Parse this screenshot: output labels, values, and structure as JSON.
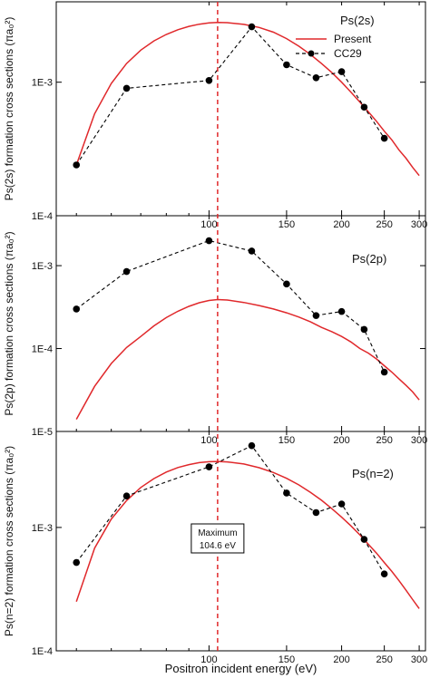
{
  "colors": {
    "present": "#e0282b",
    "cc29": "#000000",
    "maximum_line": "#e0282b",
    "frame": "#000000"
  },
  "chart_data": [
    {
      "type": "line",
      "id": "ps2s",
      "panel_label": "Ps(2s)",
      "ylabel": "Ps(2s) formation cross sections (πa₀²)",
      "ylim": [
        0.0001,
        0.004
      ],
      "yscale": "log",
      "y_ticks": [
        {
          "value": 0.001,
          "label": "1E-3"
        },
        {
          "value": 0.0001,
          "label": "1E-4"
        }
      ],
      "legend": {
        "placement": "top-right",
        "entries": [
          "Present",
          "CC29"
        ]
      },
      "series": [
        {
          "name": "Present",
          "style": "solid",
          "x": [
            50,
            55,
            60,
            65,
            70,
            75,
            80,
            85,
            90,
            95,
            100,
            104.6,
            110,
            120,
            130,
            140,
            150,
            160,
            170,
            180,
            190,
            200,
            210,
            220,
            230,
            240,
            250,
            260,
            270,
            280,
            290,
            300
          ],
          "y": [
            0.00024,
            0.00058,
            0.00098,
            0.00138,
            0.00174,
            0.00204,
            0.00228,
            0.00247,
            0.00262,
            0.00272,
            0.00278,
            0.0028,
            0.00279,
            0.00271,
            0.00257,
            0.00237,
            0.00212,
            0.00186,
            0.00161,
            0.00138,
            0.00118,
            0.001,
            0.00084,
            0.00071,
            0.0006,
            0.00051,
            0.00043,
            0.00037,
            0.00031,
            0.00027,
            0.00023,
            0.0002
          ]
        },
        {
          "name": "CC29",
          "style": "dashed-markers",
          "x": [
            50,
            65,
            100,
            125,
            150,
            175,
            200,
            225,
            250
          ],
          "y": [
            0.00024,
            0.0009,
            0.00103,
            0.0026,
            0.00135,
            0.00108,
            0.0012,
            0.00065,
            0.00038
          ]
        }
      ]
    },
    {
      "type": "line",
      "id": "ps2p",
      "panel_label": "Ps(2p)",
      "ylabel": "Ps(2p) formation cross sections (πa₀²)",
      "ylim": [
        1e-05,
        0.004
      ],
      "yscale": "log",
      "y_ticks": [
        {
          "value": 0.001,
          "label": "1E-3"
        },
        {
          "value": 0.0001,
          "label": "1E-4"
        },
        {
          "value": 1e-05,
          "label": "1E-5"
        }
      ],
      "series": [
        {
          "name": "Present",
          "style": "solid",
          "x": [
            50,
            55,
            60,
            65,
            70,
            75,
            80,
            85,
            90,
            95,
            100,
            104.6,
            110,
            120,
            130,
            140,
            150,
            160,
            170,
            180,
            190,
            200,
            210,
            220,
            230,
            240,
            250,
            260,
            270,
            280,
            290,
            300
          ],
          "y": [
            1.4e-05,
            3.5e-05,
            6.6e-05,
            0.000103,
            0.00014,
            0.000188,
            0.000236,
            0.000282,
            0.000323,
            0.000357,
            0.00038,
            0.00039,
            0.000385,
            0.00036,
            0.00033,
            0.0003,
            0.00027,
            0.00024,
            0.00021,
            0.00018,
            0.00016,
            0.00014,
            0.00012,
            0.0001,
            8.8e-05,
            7.5e-05,
            6.2e-05,
            5.2e-05,
            4.3e-05,
            3.6e-05,
            3e-05,
            2.4e-05
          ]
        },
        {
          "name": "CC29",
          "style": "dashed-markers",
          "x": [
            50,
            65,
            100,
            125,
            150,
            175,
            200,
            225,
            250
          ],
          "y": [
            0.0003,
            0.00085,
            0.002,
            0.0015,
            0.0006,
            0.00025,
            0.00028,
            0.00017,
            5.2e-05
          ]
        }
      ]
    },
    {
      "type": "line",
      "id": "psn2",
      "panel_label": "Ps(n=2)",
      "ylabel": "Ps(n=2) formation cross sections (πa₀²)",
      "xlabel": "Positron incident energy (eV)",
      "ylim": [
        0.0001,
        0.006
      ],
      "yscale": "log",
      "y_ticks": [
        {
          "value": 0.001,
          "label": "1E-3"
        },
        {
          "value": 0.0001,
          "label": "1E-4"
        }
      ],
      "series": [
        {
          "name": "Present",
          "style": "solid",
          "x": [
            50,
            55,
            60,
            65,
            70,
            75,
            80,
            85,
            90,
            95,
            100,
            104.6,
            110,
            120,
            130,
            140,
            150,
            160,
            170,
            180,
            190,
            200,
            210,
            220,
            230,
            240,
            250,
            260,
            270,
            280,
            290,
            300
          ],
          "y": [
            0.00025,
            0.00068,
            0.00117,
            0.00165,
            0.00211,
            0.00249,
            0.00281,
            0.00306,
            0.00323,
            0.00335,
            0.00341,
            0.00343,
            0.0034,
            0.00327,
            0.00305,
            0.00279,
            0.0025,
            0.00221,
            0.00192,
            0.00166,
            0.00142,
            0.00121,
            0.00103,
            0.00087,
            0.00073,
            0.00062,
            0.00052,
            0.00044,
            0.00037,
            0.00031,
            0.00026,
            0.00022
          ]
        },
        {
          "name": "CC29",
          "style": "dashed-markers",
          "x": [
            50,
            65,
            100,
            125,
            150,
            175,
            200,
            225,
            250
          ],
          "y": [
            0.00052,
            0.0018,
            0.0031,
            0.0046,
            0.0019,
            0.00132,
            0.00155,
            0.0008,
            0.00042
          ]
        }
      ]
    }
  ],
  "x_axis": {
    "scale": "log",
    "xlim": [
      45,
      310
    ],
    "ticks": [
      {
        "value": 100,
        "label": "100"
      },
      {
        "value": 150,
        "label": "150"
      },
      {
        "value": 200,
        "label": "200"
      },
      {
        "value": 250,
        "label": "250"
      },
      {
        "value": 300,
        "label": "300"
      }
    ],
    "minor_ticks": [
      50,
      60,
      70,
      80,
      90
    ]
  },
  "maximum_marker": {
    "x": 104.6,
    "label_line1": "Maximum",
    "label_line2": "104.6 eV"
  },
  "legend_labels": {
    "present": "Present",
    "cc29": "CC29"
  }
}
